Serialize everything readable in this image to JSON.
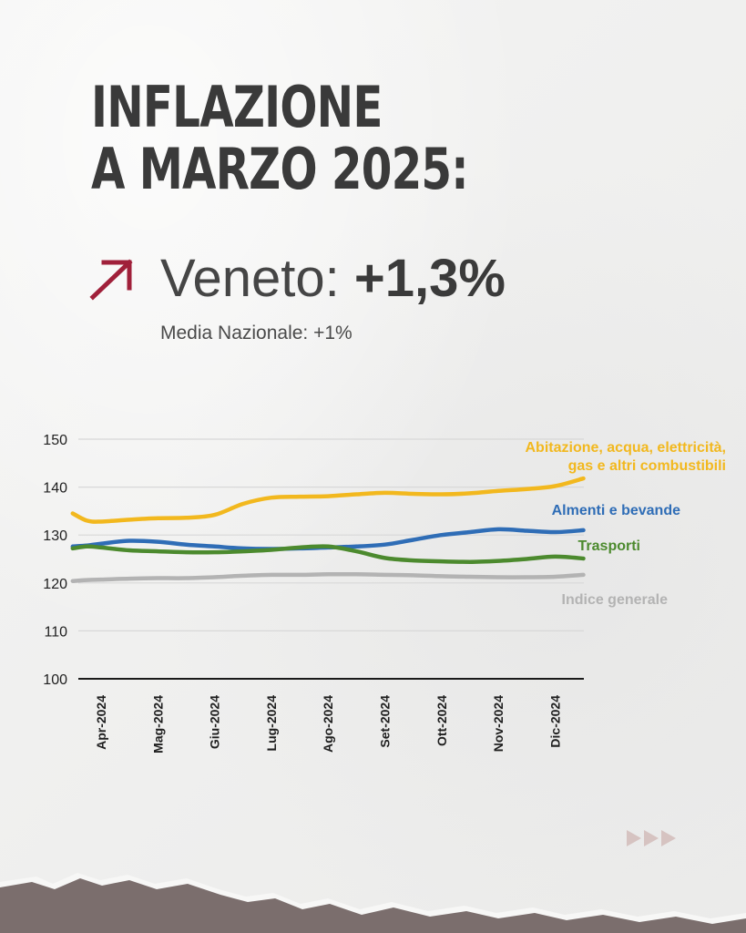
{
  "title": {
    "line1": "INFLAZIONE",
    "line2": "A MARZO 2025:"
  },
  "headline": {
    "region": "Veneto:",
    "value": "+1,3%"
  },
  "subtitle": "Media Nazionale: +1%",
  "icons": {
    "trend": "arrow-up-right-icon",
    "next": "triple-chevron-right-icon"
  },
  "colors": {
    "arrow": "#a0203a",
    "title": "#3a3a3a",
    "grid": "#d8d8d8",
    "axis": "#1a1a1a",
    "torn": "#7b6e6d"
  },
  "chart_data": {
    "type": "line",
    "categories": [
      "Apr-2024",
      "Mag-2024",
      "Giu-2024",
      "Lug-2024",
      "Ago-2024",
      "Set-2024",
      "Ott-2024",
      "Nov-2024",
      "Dic-2024"
    ],
    "ylim": [
      100,
      150
    ],
    "yticks": [
      100,
      110,
      120,
      130,
      140,
      150
    ],
    "grid": true,
    "x": [
      -0.5,
      -0.25,
      0,
      0.5,
      1,
      1.5,
      2,
      2.5,
      3,
      3.5,
      4,
      4.5,
      5,
      5.5,
      6,
      6.5,
      7,
      7.5,
      8,
      8.5
    ],
    "series": [
      {
        "name": "Abitazione, acqua, elettricità, gas e altri combustibili",
        "label_lines": [
          "Abitazione, acqua, elettricità,",
          "gas e altri combustibili"
        ],
        "color": "#f2b81e",
        "values": [
          134.5,
          133.0,
          132.8,
          133.2,
          133.5,
          133.6,
          134.2,
          136.5,
          137.8,
          138.0,
          138.1,
          138.5,
          138.8,
          138.6,
          138.5,
          138.7,
          139.2,
          139.6,
          140.2,
          141.8
        ]
      },
      {
        "name": "Almenti e bevande",
        "color": "#2f6db6",
        "values": [
          127.6,
          127.8,
          128.2,
          128.8,
          128.6,
          128.0,
          127.6,
          127.2,
          127.1,
          127.2,
          127.4,
          127.6,
          128.0,
          129.0,
          130.0,
          130.6,
          131.2,
          130.9,
          130.6,
          131.0
        ]
      },
      {
        "name": "Trasporti",
        "color": "#4c8a2e",
        "values": [
          127.2,
          127.6,
          127.4,
          126.8,
          126.6,
          126.4,
          126.4,
          126.6,
          126.9,
          127.4,
          127.6,
          126.6,
          125.2,
          124.7,
          124.5,
          124.4,
          124.6,
          125.0,
          125.5,
          125.1
        ]
      },
      {
        "name": "Indice generale",
        "color": "#b3b3b3",
        "values": [
          120.4,
          120.6,
          120.7,
          120.9,
          121.0,
          121.0,
          121.2,
          121.5,
          121.7,
          121.7,
          121.8,
          121.8,
          121.7,
          121.6,
          121.4,
          121.3,
          121.2,
          121.2,
          121.3,
          121.7
        ]
      }
    ]
  }
}
